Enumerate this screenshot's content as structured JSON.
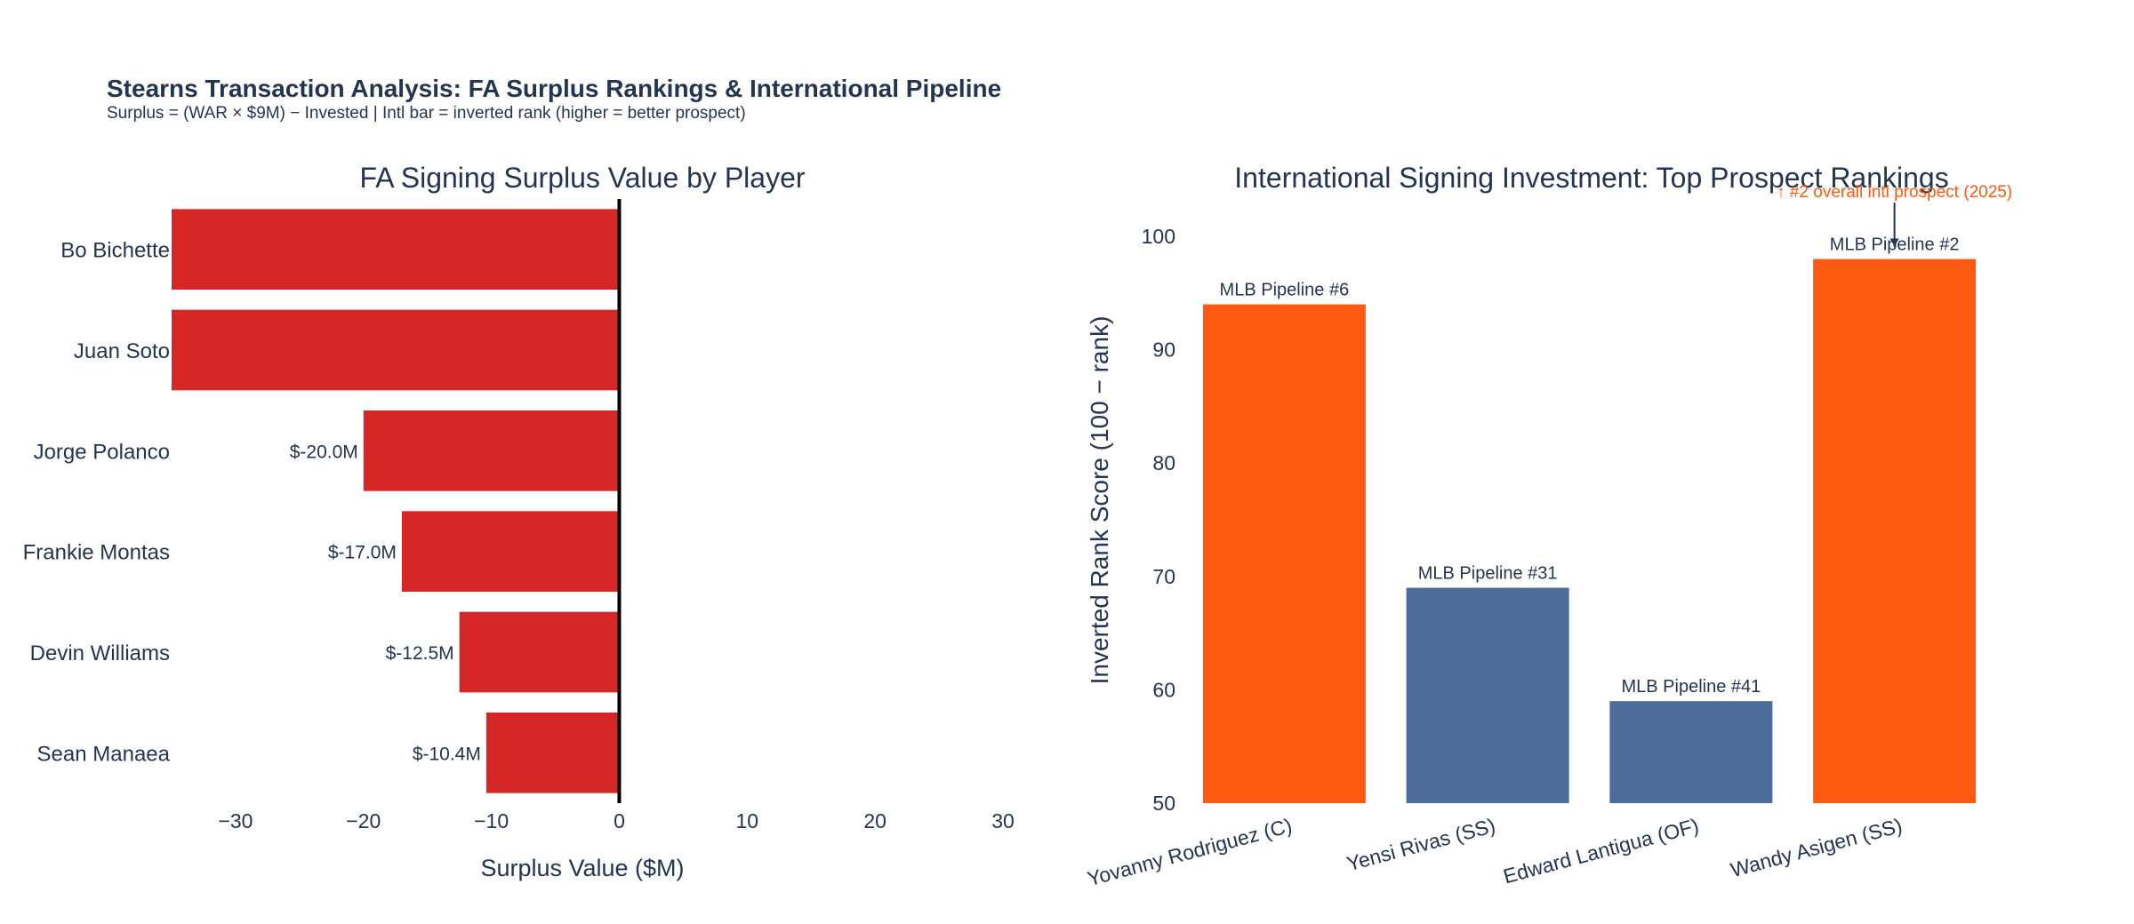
{
  "figure": {
    "title": "Stearns Transaction Analysis: FA Surplus Rankings & International Pipeline",
    "subtitle": "Surplus = (WAR × $9M) − Invested | Intl bar = inverted rank (higher = better prospect)"
  },
  "colors": {
    "negative_bar": "#d62728",
    "top_prospect_bar": "#ff5a12",
    "prospect_bar": "#4c6c9a",
    "text": "#243551",
    "zero_line": "#000000",
    "annotation": "#ff5a12"
  },
  "chart_data": [
    {
      "type": "bar",
      "orientation": "horizontal",
      "title": "FA Signing Surplus Value by Player",
      "xlabel": "Surplus Value ($M)",
      "ylabel": "",
      "xlim": [
        -35,
        30
      ],
      "xticks": [
        -30,
        -20,
        -10,
        0,
        10,
        20,
        30
      ],
      "xtick_labels": [
        "−30",
        "−20",
        "−10",
        "0",
        "10",
        "20",
        "30"
      ],
      "grid": false,
      "categories": [
        "Bo Bichette",
        "Juan Soto",
        "Jorge Polanco",
        "Frankie Montas",
        "Devin Williams",
        "Sean Manaea"
      ],
      "values": [
        -35,
        -35,
        -20.0,
        -17.0,
        -12.5,
        -10.4
      ],
      "data_labels": [
        "",
        "",
        "$-20.0M",
        "$-17.0M",
        "$-12.5M",
        "$-10.4M"
      ]
    },
    {
      "type": "bar",
      "orientation": "vertical",
      "title": "International Signing Investment: Top Prospect Rankings",
      "xlabel": "",
      "ylabel": "Inverted Rank Score (100 − rank)",
      "ylim": [
        50,
        104
      ],
      "yticks": [
        50,
        60,
        70,
        80,
        90,
        100
      ],
      "grid": false,
      "categories": [
        "Yovanny Rodriguez (C)",
        "Yensi Rivas (SS)",
        "Edward Lantigua (OF)",
        "Wandy Asigen (SS)"
      ],
      "values": [
        94,
        69,
        59,
        98
      ],
      "top_prospect": [
        true,
        false,
        false,
        true
      ],
      "data_labels": [
        "MLB Pipeline #6",
        "MLB Pipeline #31",
        "MLB Pipeline #41",
        "MLB Pipeline #2"
      ],
      "annotations": [
        {
          "category_index": 3,
          "text": "↑ #2 overall intl prospect (2025)"
        }
      ]
    }
  ]
}
